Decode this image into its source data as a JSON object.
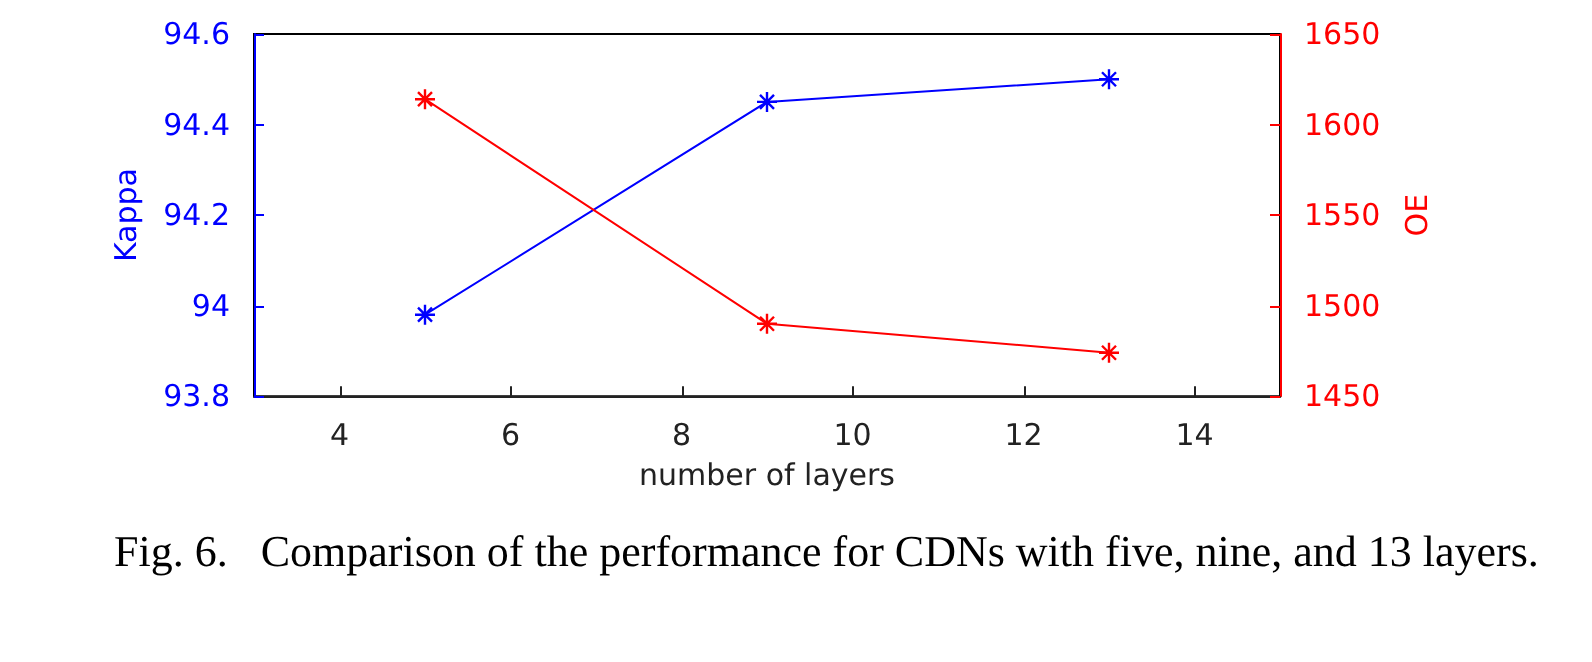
{
  "chart_data": {
    "type": "line",
    "xlabel": "number of layers",
    "ylabel": "Kappa",
    "y2label": "OE",
    "x": [
      5,
      9,
      13
    ],
    "series": [
      {
        "color": "#0000ff",
        "values": [
          93.98,
          94.45,
          94.5
        ]
      },
      {
        "color": "#ff0000",
        "values": [
          1614,
          1490,
          1474
        ],
        "axis": "y2"
      }
    ],
    "xlim": [
      3,
      15
    ],
    "xticks": [
      4,
      6,
      8,
      10,
      12,
      14
    ],
    "ylim": [
      93.8,
      94.6
    ],
    "yticks": [
      93.8,
      94,
      94.2,
      94.4,
      94.6
    ],
    "y2lim": [
      1450,
      1650
    ],
    "y2ticks": [
      1450,
      1500,
      1550,
      1600,
      1650
    ],
    "grid": false,
    "marker": "cross",
    "line_style": "solid",
    "annotations": [
      "Fig. 6.   Comparison of the performance for CDNs with five, nine, and 13 layers."
    ]
  }
}
